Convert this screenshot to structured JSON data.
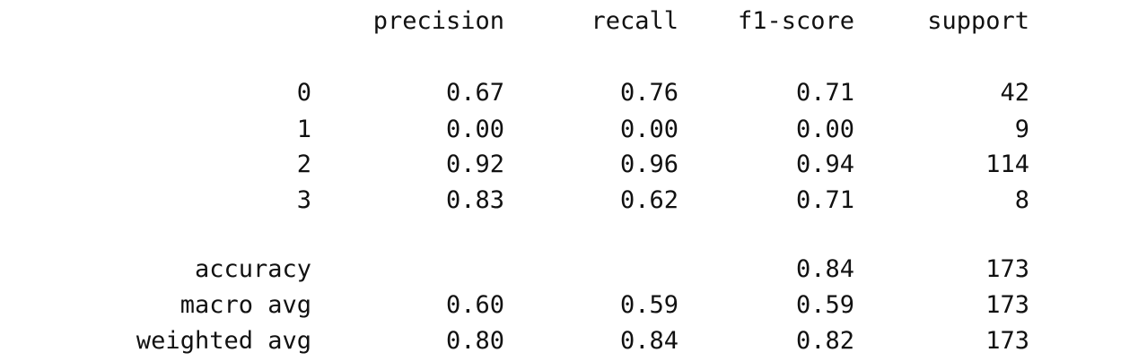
{
  "report": {
    "headers": [
      "precision",
      "recall",
      "f1-score",
      "support"
    ],
    "class_rows": [
      {
        "label": "0",
        "precision": "0.67",
        "recall": "0.76",
        "f1": "0.71",
        "support": "42"
      },
      {
        "label": "1",
        "precision": "0.00",
        "recall": "0.00",
        "f1": "0.00",
        "support": "9"
      },
      {
        "label": "2",
        "precision": "0.92",
        "recall": "0.96",
        "f1": "0.94",
        "support": "114"
      },
      {
        "label": "3",
        "precision": "0.83",
        "recall": "0.62",
        "f1": "0.71",
        "support": "8"
      }
    ],
    "summary_rows": [
      {
        "label": "accuracy",
        "precision": "",
        "recall": "",
        "f1": "0.84",
        "support": "173"
      },
      {
        "label": "macro avg",
        "precision": "0.60",
        "recall": "0.59",
        "f1": "0.59",
        "support": "173"
      },
      {
        "label": "weighted avg",
        "precision": "0.80",
        "recall": "0.84",
        "f1": "0.82",
        "support": "173"
      }
    ]
  }
}
